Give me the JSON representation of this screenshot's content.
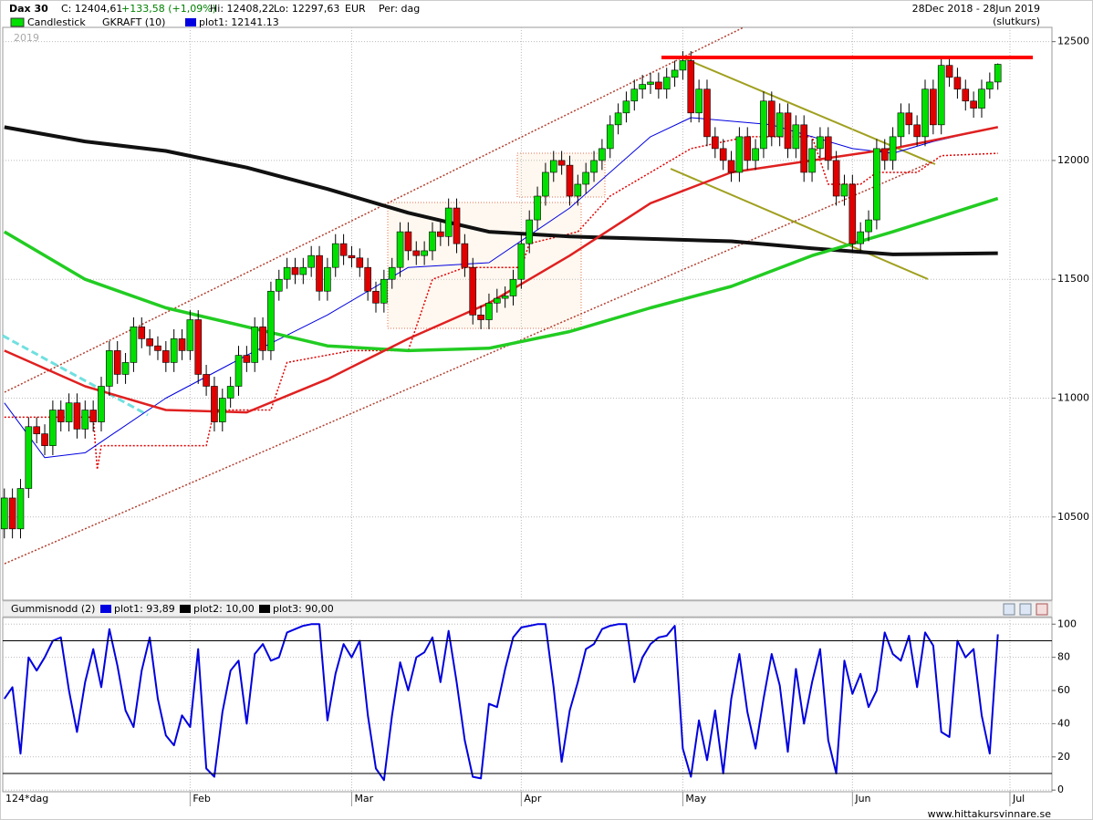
{
  "header": {
    "instrument": "Dax 30",
    "close": "C: 12404,61",
    "change": "+133,58 (+1,09%)",
    "high": "Hi: 12408,22",
    "low": "Lo: 12297,63",
    "currency": "EUR",
    "period": "Per: dag",
    "date_range": "28Dec 2018 - 28Jun 2019",
    "price_type": "(slutkurs)",
    "year": "2019"
  },
  "chart_data": [
    {
      "type": "candlestick",
      "legend_name": "Candlestick",
      "up_color": "#00e000",
      "down_color": "#e00000",
      "xlim": [
        -0.2,
        129.7
      ],
      "ylim": [
        10150,
        12560
      ],
      "yticks": [
        10500,
        11000,
        11500,
        12000,
        12500
      ],
      "grid": true,
      "candles": {
        "open": [
          10450,
          10580,
          10450,
          10620,
          10880,
          10850,
          10800,
          10950,
          10900,
          10980,
          10870,
          10950,
          10900,
          11050,
          11200,
          11100,
          11150,
          11300,
          11250,
          11220,
          11200,
          11150,
          11250,
          11200,
          11330,
          11100,
          11050,
          10900,
          11000,
          11050,
          11180,
          11150,
          11300,
          11200,
          11450,
          11500,
          11550,
          11520,
          11550,
          11600,
          11450,
          11550,
          11650,
          11600,
          11590,
          11550,
          11450,
          11400,
          11500,
          11550,
          11700,
          11620,
          11600,
          11620,
          11700,
          11680,
          11800,
          11650,
          11550,
          11350,
          11330,
          11400,
          11420,
          11430,
          11500,
          11650,
          11750,
          11850,
          11950,
          12000,
          11980,
          11850,
          11900,
          11950,
          12000,
          12050,
          12150,
          12200,
          12250,
          12300,
          12320,
          12330,
          12300,
          12350,
          12380,
          12420,
          12200,
          12300,
          12100,
          12050,
          12000,
          11950,
          12100,
          12000,
          12050,
          12250,
          12100,
          12200,
          12050,
          12150,
          11950,
          12050,
          12100,
          12000,
          11850,
          11900,
          11650,
          11700,
          11750,
          12050,
          12000,
          12100,
          12200,
          12150,
          12100,
          12300,
          12150,
          12400,
          12350,
          12300,
          12250,
          12220,
          12300,
          12330
        ],
        "high": [
          10620,
          10620,
          10660,
          10920,
          10920,
          10890,
          10990,
          10990,
          11020,
          11020,
          10990,
          10990,
          11090,
          11240,
          11240,
          11190,
          11340,
          11340,
          11290,
          11260,
          11240,
          11290,
          11290,
          11370,
          11370,
          11140,
          11090,
          11040,
          11090,
          11220,
          11220,
          11340,
          11340,
          11490,
          11540,
          11590,
          11590,
          11590,
          11640,
          11640,
          11590,
          11690,
          11690,
          11640,
          11630,
          11590,
          11490,
          11540,
          11590,
          11740,
          11740,
          11660,
          11660,
          11740,
          11740,
          11840,
          11840,
          11690,
          11590,
          11390,
          11440,
          11460,
          11470,
          11540,
          11690,
          11790,
          11890,
          11990,
          12040,
          12040,
          12020,
          11940,
          11990,
          12040,
          12090,
          12190,
          12240,
          12290,
          12340,
          12360,
          12370,
          12370,
          12390,
          12420,
          12460,
          12460,
          12340,
          12340,
          12140,
          12090,
          12040,
          12140,
          12140,
          12090,
          12290,
          12290,
          12240,
          12240,
          12190,
          12190,
          12090,
          12140,
          12140,
          12040,
          11940,
          11940,
          11740,
          11790,
          12090,
          12090,
          12140,
          12240,
          12240,
          12190,
          12340,
          12340,
          12440,
          12440,
          12390,
          12340,
          12290,
          12340,
          12370,
          12408.22
        ],
        "low": [
          10410,
          10410,
          10410,
          10580,
          10810,
          10760,
          10760,
          10860,
          10860,
          10830,
          10830,
          10860,
          10860,
          11010,
          11060,
          11060,
          11110,
          11210,
          11180,
          11160,
          11110,
          11110,
          11160,
          11160,
          11060,
          11010,
          10860,
          10860,
          10960,
          11010,
          11110,
          11110,
          11160,
          11160,
          11410,
          11460,
          11480,
          11480,
          11510,
          11410,
          11410,
          11510,
          11560,
          11550,
          11510,
          11410,
          11360,
          11360,
          11460,
          11510,
          11580,
          11560,
          11560,
          11580,
          11640,
          11640,
          11610,
          11510,
          11310,
          11290,
          11290,
          11360,
          11380,
          11390,
          11460,
          11610,
          11710,
          11810,
          11910,
          11940,
          11810,
          11810,
          11860,
          11910,
          11960,
          12010,
          12110,
          12160,
          12210,
          12260,
          12280,
          12260,
          12260,
          12310,
          12340,
          12160,
          12160,
          12060,
          12010,
          11960,
          11910,
          11910,
          11960,
          11960,
          12010,
          12060,
          12060,
          12010,
          12010,
          11910,
          11910,
          12010,
          11960,
          11810,
          11810,
          11610,
          11610,
          11660,
          11710,
          11960,
          11960,
          12060,
          12110,
          12060,
          12060,
          12110,
          12110,
          12310,
          12260,
          12210,
          12180,
          12180,
          12260,
          12297.63
        ],
        "close": [
          10580,
          10450,
          10620,
          10880,
          10850,
          10800,
          10950,
          10900,
          10980,
          10870,
          10950,
          10900,
          11050,
          11200,
          11100,
          11150,
          11300,
          11250,
          11220,
          11200,
          11150,
          11250,
          11200,
          11330,
          11100,
          11050,
          10900,
          11000,
          11050,
          11180,
          11150,
          11300,
          11200,
          11450,
          11500,
          11550,
          11520,
          11550,
          11600,
          11450,
          11550,
          11650,
          11600,
          11590,
          11550,
          11450,
          11400,
          11500,
          11550,
          11700,
          11620,
          11600,
          11620,
          11700,
          11680,
          11800,
          11650,
          11550,
          11350,
          11330,
          11400,
          11420,
          11430,
          11500,
          11650,
          11750,
          11850,
          11950,
          12000,
          11980,
          11850,
          11900,
          11950,
          12000,
          12050,
          12150,
          12200,
          12250,
          12300,
          12320,
          12330,
          12300,
          12350,
          12380,
          12420,
          12200,
          12300,
          12100,
          12050,
          12000,
          11950,
          12100,
          12000,
          12050,
          12250,
          12100,
          12200,
          12050,
          12150,
          11950,
          12050,
          12100,
          12000,
          11850,
          11900,
          11650,
          11700,
          11750,
          12050,
          12000,
          12100,
          12200,
          12150,
          12100,
          12300,
          12150,
          12400,
          12350,
          12300,
          12250,
          12220,
          12300,
          12330,
          12404.61
        ]
      },
      "series": [
        {
          "name": "GKRAFT (10)",
          "color": "#e00000",
          "dotted": true,
          "width": 1.5,
          "x": [
            0,
            11,
            11.5,
            12,
            25,
            26,
            33,
            35,
            43,
            50,
            53,
            57,
            64,
            65,
            71,
            75,
            80,
            85,
            92,
            100,
            102,
            106,
            108,
            113,
            116,
            123
          ],
          "values": [
            10920,
            10920,
            10700,
            10800,
            10800,
            10950,
            10950,
            11150,
            11200,
            11200,
            11500,
            11550,
            11550,
            11650,
            11700,
            11850,
            11950,
            12050,
            12100,
            12100,
            11900,
            11900,
            11950,
            11950,
            12020,
            12030
          ]
        },
        {
          "name": "plot1: 12141.13",
          "color": "#0000e0",
          "width": 1,
          "x": [
            0,
            5,
            10,
            20,
            30,
            40,
            50,
            60,
            70,
            80,
            85,
            95,
            105,
            110,
            115,
            123
          ],
          "values": [
            10980,
            10750,
            10770,
            11000,
            11180,
            11350,
            11550,
            11570,
            11800,
            12100,
            12180,
            12150,
            12050,
            12030,
            12080,
            12141.13
          ]
        },
        {
          "color": "#111111",
          "width": 4,
          "x": [
            0,
            10,
            20,
            30,
            40,
            50,
            60,
            70,
            80,
            90,
            100,
            110,
            123
          ],
          "values": [
            12140,
            12080,
            12040,
            11970,
            11880,
            11780,
            11700,
            11680,
            11670,
            11660,
            11630,
            11605,
            11610
          ]
        },
        {
          "color": "#22cc22",
          "width": 3.5,
          "x": [
            0,
            10,
            20,
            30,
            40,
            50,
            60,
            70,
            80,
            90,
            100,
            110,
            123
          ],
          "values": [
            11700,
            11500,
            11380,
            11300,
            11220,
            11200,
            11210,
            11280,
            11380,
            11470,
            11600,
            11700,
            11840
          ]
        },
        {
          "color": "#e02020",
          "width": 2.5,
          "x": [
            0,
            10,
            20,
            30,
            40,
            50,
            60,
            70,
            80,
            90,
            100,
            110,
            123
          ],
          "values": [
            11200,
            11050,
            10950,
            10940,
            11080,
            11250,
            11400,
            11600,
            11820,
            11950,
            12000,
            12050,
            12140
          ]
        }
      ]
    },
    {
      "type": "line",
      "title": "Gummisnodd (2)",
      "xlim": [
        -0.2,
        129.7
      ],
      "ylim": [
        -1,
        104
      ],
      "yticks": [
        0,
        20,
        40,
        60,
        80,
        100
      ],
      "xticks": [
        {
          "value": 23,
          "label": "Feb"
        },
        {
          "value": 43,
          "label": "Mar"
        },
        {
          "value": 64,
          "label": "Apr"
        },
        {
          "value": 84,
          "label": "May"
        },
        {
          "value": 105,
          "label": "Jun"
        },
        {
          "value": 124.5,
          "label": "Jul"
        }
      ],
      "series": [
        {
          "name": "plot1: 93,89",
          "color": "#0000e0",
          "values": [
            55,
            62,
            22,
            80,
            72,
            80,
            90,
            92,
            60,
            35,
            65,
            85,
            62,
            97,
            75,
            48,
            38,
            72,
            92,
            55,
            33,
            27,
            45,
            38,
            85,
            13,
            8,
            47,
            72,
            78,
            40,
            82,
            88,
            78,
            80,
            95,
            97,
            99,
            100,
            100,
            42,
            70,
            88,
            80,
            90,
            45,
            13,
            6,
            45,
            77,
            60,
            80,
            83,
            92,
            65,
            96,
            65,
            30,
            8,
            7,
            52,
            50,
            73,
            92,
            98,
            99,
            100,
            100,
            62,
            17,
            48,
            65,
            85,
            88,
            97,
            99,
            100,
            100,
            65,
            80,
            88,
            92,
            93,
            99,
            25,
            8,
            42,
            18,
            48,
            10,
            55,
            82,
            47,
            25,
            55,
            82,
            63,
            23,
            73,
            40,
            65,
            85,
            30,
            10,
            78,
            58,
            70,
            50,
            60,
            95,
            82,
            78,
            93,
            62,
            95,
            87,
            35,
            32,
            90,
            80,
            85,
            45,
            22,
            93.89
          ]
        },
        {
          "name": "plot2: 10,00",
          "color": "#000000",
          "level": 10
        },
        {
          "name": "plot3: 90,00",
          "color": "#000000",
          "level": 90
        }
      ]
    }
  ],
  "footer": {
    "period_label": "124*dag",
    "source": "www.hittakursvinnare.se"
  }
}
